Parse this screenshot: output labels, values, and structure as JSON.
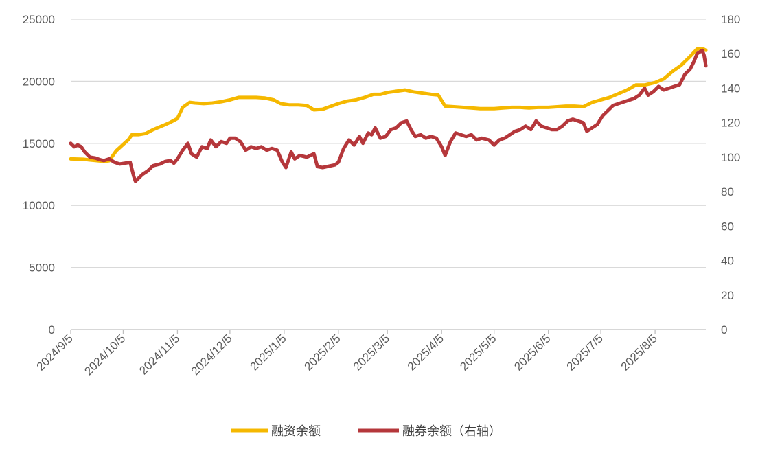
{
  "chart_data": {
    "type": "line",
    "x_tick_labels": [
      "2024/9/5",
      "2024/10/5",
      "2024/11/5",
      "2024/12/5",
      "2025/1/5",
      "2025/2/5",
      "2025/3/5",
      "2025/4/5",
      "2025/5/5",
      "2025/6/5",
      "2025/7/5",
      "2025/8/5"
    ],
    "y_left": {
      "ticks": [
        0,
        5000,
        10000,
        15000,
        20000,
        25000
      ],
      "range": [
        0,
        25000
      ]
    },
    "y_right": {
      "ticks": [
        0,
        20,
        40,
        60,
        80,
        100,
        120,
        140,
        160,
        180
      ],
      "range": [
        0,
        180
      ]
    },
    "grid": "horizontal",
    "legend_position": "bottom",
    "series": [
      {
        "name": "融资余额",
        "axis": "left",
        "color": "#F5B800",
        "points": [
          [
            "2024/9/5",
            13750
          ],
          [
            "2024/9/12",
            13720
          ],
          [
            "2024/9/19",
            13620
          ],
          [
            "2024/9/24",
            13550
          ],
          [
            "2024/9/27",
            13600
          ],
          [
            "2024/10/1",
            14400
          ],
          [
            "2024/10/8",
            15300
          ],
          [
            "2024/10/10",
            15700
          ],
          [
            "2024/10/14",
            15700
          ],
          [
            "2024/10/18",
            15800
          ],
          [
            "2024/10/22",
            16100
          ],
          [
            "2024/10/28",
            16450
          ],
          [
            "2024/11/1",
            16700
          ],
          [
            "2024/11/5",
            17000
          ],
          [
            "2024/11/8",
            17900
          ],
          [
            "2024/11/12",
            18300
          ],
          [
            "2024/11/15",
            18250
          ],
          [
            "2024/11/20",
            18200
          ],
          [
            "2024/11/25",
            18250
          ],
          [
            "2024/11/30",
            18350
          ],
          [
            "2024/12/5",
            18500
          ],
          [
            "2024/12/10",
            18700
          ],
          [
            "2024/12/15",
            18700
          ],
          [
            "2024/12/20",
            18700
          ],
          [
            "2024/12/25",
            18650
          ],
          [
            "2024/12/30",
            18500
          ],
          [
            "2025/1/3",
            18200
          ],
          [
            "2025/1/8",
            18100
          ],
          [
            "2025/1/13",
            18100
          ],
          [
            "2025/1/18",
            18050
          ],
          [
            "2025/1/22",
            17700
          ],
          [
            "2025/1/27",
            17750
          ],
          [
            "2025/2/5",
            18200
          ],
          [
            "2025/2/10",
            18400
          ],
          [
            "2025/2/15",
            18500
          ],
          [
            "2025/2/20",
            18700
          ],
          [
            "2025/2/25",
            18950
          ],
          [
            "2025/3/1",
            18950
          ],
          [
            "2025/3/5",
            19100
          ],
          [
            "2025/3/10",
            19200
          ],
          [
            "2025/3/15",
            19300
          ],
          [
            "2025/3/20",
            19150
          ],
          [
            "2025/3/25",
            19050
          ],
          [
            "2025/3/30",
            18950
          ],
          [
            "2025/4/3",
            18900
          ],
          [
            "2025/4/7",
            18000
          ],
          [
            "2025/4/12",
            17950
          ],
          [
            "2025/4/17",
            17900
          ],
          [
            "2025/4/22",
            17850
          ],
          [
            "2025/4/27",
            17800
          ],
          [
            "2025/5/5",
            17800
          ],
          [
            "2025/5/10",
            17850
          ],
          [
            "2025/5/15",
            17900
          ],
          [
            "2025/5/20",
            17900
          ],
          [
            "2025/5/25",
            17850
          ],
          [
            "2025/5/30",
            17900
          ],
          [
            "2025/6/5",
            17900
          ],
          [
            "2025/6/10",
            17950
          ],
          [
            "2025/6/15",
            18000
          ],
          [
            "2025/6/20",
            18000
          ],
          [
            "2025/6/25",
            17950
          ],
          [
            "2025/6/30",
            18300
          ],
          [
            "2025/7/5",
            18500
          ],
          [
            "2025/7/10",
            18700
          ],
          [
            "2025/7/15",
            19000
          ],
          [
            "2025/7/20",
            19300
          ],
          [
            "2025/7/25",
            19700
          ],
          [
            "2025/7/30",
            19700
          ],
          [
            "2025/8/5",
            19900
          ],
          [
            "2025/8/10",
            20200
          ],
          [
            "2025/8/15",
            20800
          ],
          [
            "2025/8/20",
            21300
          ],
          [
            "2025/8/25",
            22000
          ],
          [
            "2025/8/29",
            22600
          ],
          [
            "2025/9/1",
            22650
          ],
          [
            "2025/9/3",
            22500
          ]
        ]
      },
      {
        "name": "融券余额（右轴）",
        "axis": "right",
        "color": "#B5373B",
        "points": [
          [
            "2024/9/5",
            108
          ],
          [
            "2024/9/7",
            106
          ],
          [
            "2024/9/9",
            107
          ],
          [
            "2024/9/11",
            106
          ],
          [
            "2024/9/13",
            103
          ],
          [
            "2024/9/16",
            100
          ],
          [
            "2024/9/19",
            99.5
          ],
          [
            "2024/9/22",
            98.5
          ],
          [
            "2024/9/24",
            98
          ],
          [
            "2024/9/27",
            99
          ],
          [
            "2024/9/30",
            97
          ],
          [
            "2024/10/3",
            96
          ],
          [
            "2024/10/6",
            96.5
          ],
          [
            "2024/10/9",
            97
          ],
          [
            "2024/10/11",
            89
          ],
          [
            "2024/10/12",
            86
          ],
          [
            "2024/10/14",
            88
          ],
          [
            "2024/10/16",
            90
          ],
          [
            "2024/10/19",
            92
          ],
          [
            "2024/10/22",
            95
          ],
          [
            "2024/10/26",
            96
          ],
          [
            "2024/10/29",
            97.5
          ],
          [
            "2024/11/1",
            98
          ],
          [
            "2024/11/3",
            96.5
          ],
          [
            "2024/11/5",
            99
          ],
          [
            "2024/11/8",
            104
          ],
          [
            "2024/11/11",
            108
          ],
          [
            "2024/11/13",
            102
          ],
          [
            "2024/11/16",
            100
          ],
          [
            "2024/11/19",
            106
          ],
          [
            "2024/11/22",
            105
          ],
          [
            "2024/11/24",
            110
          ],
          [
            "2024/11/27",
            106
          ],
          [
            "2024/11/30",
            109
          ],
          [
            "2024/12/3",
            108
          ],
          [
            "2024/12/5",
            111
          ],
          [
            "2024/12/8",
            111
          ],
          [
            "2024/12/11",
            109
          ],
          [
            "2024/12/14",
            104
          ],
          [
            "2024/12/17",
            106
          ],
          [
            "2024/12/20",
            105
          ],
          [
            "2024/12/23",
            106
          ],
          [
            "2024/12/26",
            104
          ],
          [
            "2024/12/29",
            105
          ],
          [
            "2025/1/1",
            104
          ],
          [
            "2025/1/4",
            97
          ],
          [
            "2025/1/6",
            94
          ],
          [
            "2025/1/9",
            103
          ],
          [
            "2025/1/11",
            99
          ],
          [
            "2025/1/14",
            101
          ],
          [
            "2025/1/18",
            100
          ],
          [
            "2025/1/22",
            102
          ],
          [
            "2025/1/24",
            94.5
          ],
          [
            "2025/1/27",
            94
          ],
          [
            "2025/2/3",
            95.5
          ],
          [
            "2025/2/5",
            97
          ],
          [
            "2025/2/8",
            105
          ],
          [
            "2025/2/11",
            110
          ],
          [
            "2025/2/14",
            107
          ],
          [
            "2025/2/17",
            112
          ],
          [
            "2025/2/19",
            108
          ],
          [
            "2025/2/22",
            114
          ],
          [
            "2025/2/24",
            113
          ],
          [
            "2025/2/26",
            117
          ],
          [
            "2025/3/1",
            111
          ],
          [
            "2025/3/4",
            112
          ],
          [
            "2025/3/7",
            116
          ],
          [
            "2025/3/10",
            117
          ],
          [
            "2025/3/13",
            120
          ],
          [
            "2025/3/16",
            121
          ],
          [
            "2025/3/19",
            115
          ],
          [
            "2025/3/21",
            112
          ],
          [
            "2025/3/24",
            113
          ],
          [
            "2025/3/27",
            111
          ],
          [
            "2025/3/30",
            112
          ],
          [
            "2025/4/2",
            111
          ],
          [
            "2025/4/5",
            106
          ],
          [
            "2025/4/7",
            101
          ],
          [
            "2025/4/10",
            109
          ],
          [
            "2025/4/13",
            114
          ],
          [
            "2025/4/16",
            113
          ],
          [
            "2025/4/19",
            112
          ],
          [
            "2025/4/22",
            113
          ],
          [
            "2025/4/25",
            110
          ],
          [
            "2025/4/28",
            111
          ],
          [
            "2025/5/2",
            110
          ],
          [
            "2025/5/5",
            107
          ],
          [
            "2025/5/8",
            110
          ],
          [
            "2025/5/11",
            111
          ],
          [
            "2025/5/14",
            113
          ],
          [
            "2025/5/17",
            115
          ],
          [
            "2025/5/20",
            116
          ],
          [
            "2025/5/23",
            118
          ],
          [
            "2025/5/26",
            116
          ],
          [
            "2025/5/29",
            121
          ],
          [
            "2025/6/1",
            118
          ],
          [
            "2025/6/4",
            117
          ],
          [
            "2025/6/7",
            116
          ],
          [
            "2025/6/10",
            116
          ],
          [
            "2025/6/13",
            118
          ],
          [
            "2025/6/16",
            121
          ],
          [
            "2025/6/19",
            122
          ],
          [
            "2025/6/22",
            121
          ],
          [
            "2025/6/25",
            120
          ],
          [
            "2025/6/27",
            115
          ],
          [
            "2025/6/30",
            117
          ],
          [
            "2025/7/3",
            119
          ],
          [
            "2025/7/6",
            124
          ],
          [
            "2025/7/9",
            127
          ],
          [
            "2025/7/12",
            130
          ],
          [
            "2025/7/15",
            131
          ],
          [
            "2025/7/18",
            132
          ],
          [
            "2025/7/21",
            133
          ],
          [
            "2025/7/24",
            134
          ],
          [
            "2025/7/27",
            136
          ],
          [
            "2025/7/30",
            140
          ],
          [
            "2025/8/1",
            136
          ],
          [
            "2025/8/4",
            138
          ],
          [
            "2025/8/7",
            141
          ],
          [
            "2025/8/10",
            139
          ],
          [
            "2025/8/13",
            140
          ],
          [
            "2025/8/16",
            141
          ],
          [
            "2025/8/19",
            142
          ],
          [
            "2025/8/22",
            148
          ],
          [
            "2025/8/25",
            151
          ],
          [
            "2025/8/27",
            155
          ],
          [
            "2025/8/29",
            160
          ],
          [
            "2025/9/1",
            162
          ],
          [
            "2025/9/2",
            159
          ],
          [
            "2025/9/3",
            153
          ]
        ]
      }
    ]
  }
}
